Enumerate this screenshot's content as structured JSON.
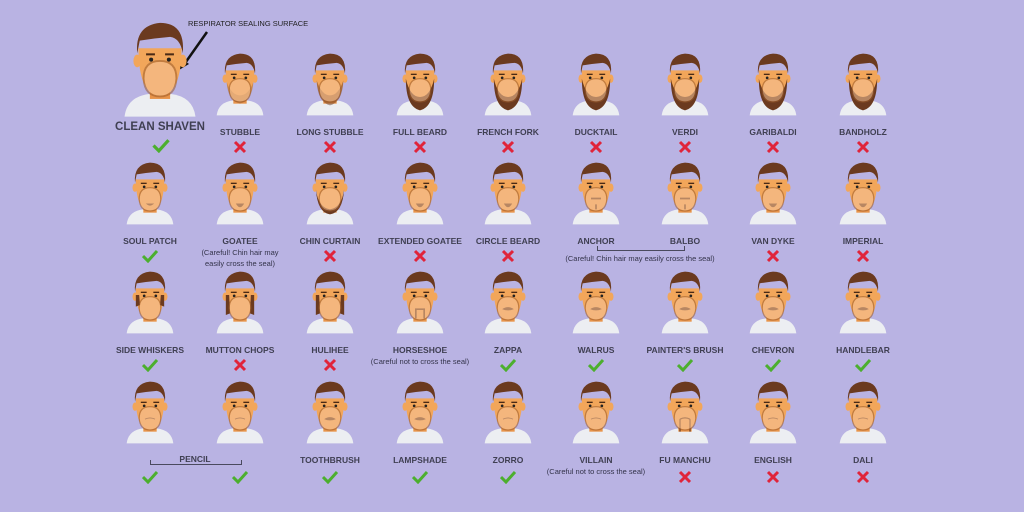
{
  "annotation": "RESPIRATOR SEALING SURFACE",
  "hero": {
    "label": "CLEAN SHAVEN",
    "status": "ok"
  },
  "colors": {
    "background": "#b9b3e3",
    "ok": "#4caf2e",
    "no": "#e0243a",
    "skin": "#f2a65a",
    "hair": "#6b3a1f"
  },
  "rows": [
    [
      {
        "label": "STUBBLE",
        "status": "no",
        "style": "stubble"
      },
      {
        "label": "LONG STUBBLE",
        "status": "no",
        "style": "stubble2"
      },
      {
        "label": "FULL BEARD",
        "status": "no",
        "style": "beard"
      },
      {
        "label": "FRENCH FORK",
        "status": "no",
        "style": "beard"
      },
      {
        "label": "DUCKTAIL",
        "status": "no",
        "style": "beard"
      },
      {
        "label": "VERDI",
        "status": "no",
        "style": "beard"
      },
      {
        "label": "GARIBALDI",
        "status": "no",
        "style": "beard"
      },
      {
        "label": "BANDHOLZ",
        "status": "no",
        "style": "beard"
      }
    ],
    [
      {
        "label": "SOUL PATCH",
        "status": "ok",
        "style": "soul"
      },
      {
        "label": "GOATEE",
        "status": "",
        "style": "goatee",
        "note": "(Careful! Chin hair may easily cross the seal)"
      },
      {
        "label": "CHIN CURTAIN",
        "status": "no",
        "style": "curtain"
      },
      {
        "label": "EXTENDED GOATEE",
        "status": "no",
        "style": "goatee"
      },
      {
        "label": "CIRCLE BEARD",
        "status": "no",
        "style": "goatee"
      },
      {
        "label": "ANCHOR",
        "status": "",
        "style": "anchor"
      },
      {
        "label": "BALBO",
        "status": "",
        "style": "anchor"
      },
      {
        "label": "VAN DYKE",
        "status": "no",
        "style": "goatee"
      },
      {
        "label": "IMPERIAL",
        "status": "no",
        "style": "goatee"
      }
    ],
    [
      {
        "label": "SIDE WHISKERS",
        "status": "ok",
        "style": "whiskers"
      },
      {
        "label": "MUTTON CHOPS",
        "status": "no",
        "style": "chops"
      },
      {
        "label": "HULIHEE",
        "status": "no",
        "style": "chops"
      },
      {
        "label": "HORSESHOE",
        "status": "",
        "style": "horseshoe",
        "note": "(Careful not to cross the seal)"
      },
      {
        "label": "ZAPPA",
        "status": "ok",
        "style": "mustache"
      },
      {
        "label": "WALRUS",
        "status": "ok",
        "style": "mustache"
      },
      {
        "label": "PAINTER'S BRUSH",
        "status": "ok",
        "style": "mustache"
      },
      {
        "label": "CHEVRON",
        "status": "ok",
        "style": "mustache"
      },
      {
        "label": "HANDLEBAR",
        "status": "ok",
        "style": "mustache"
      }
    ],
    [
      {
        "label": "",
        "status": "ok",
        "style": "thin"
      },
      {
        "label": "",
        "status": "ok",
        "style": "thin"
      },
      {
        "label": "TOOTHBRUSH",
        "status": "ok",
        "style": "mustache"
      },
      {
        "label": "LAMPSHADE",
        "status": "ok",
        "style": "mustache"
      },
      {
        "label": "ZORRO",
        "status": "ok",
        "style": "thin"
      },
      {
        "label": "VILLAIN",
        "status": "",
        "style": "thin",
        "note": "(Careful not to cross the seal)"
      },
      {
        "label": "FU MANCHU",
        "status": "no",
        "style": "fu"
      },
      {
        "label": "ENGLISH",
        "status": "no",
        "style": "thin"
      },
      {
        "label": "DALI",
        "status": "no",
        "style": "thin"
      }
    ]
  ],
  "groups": {
    "anchor_balbo_note": "(Careful! Chin hair may easily cross the seal)",
    "pencil_label": "PENCIL"
  }
}
